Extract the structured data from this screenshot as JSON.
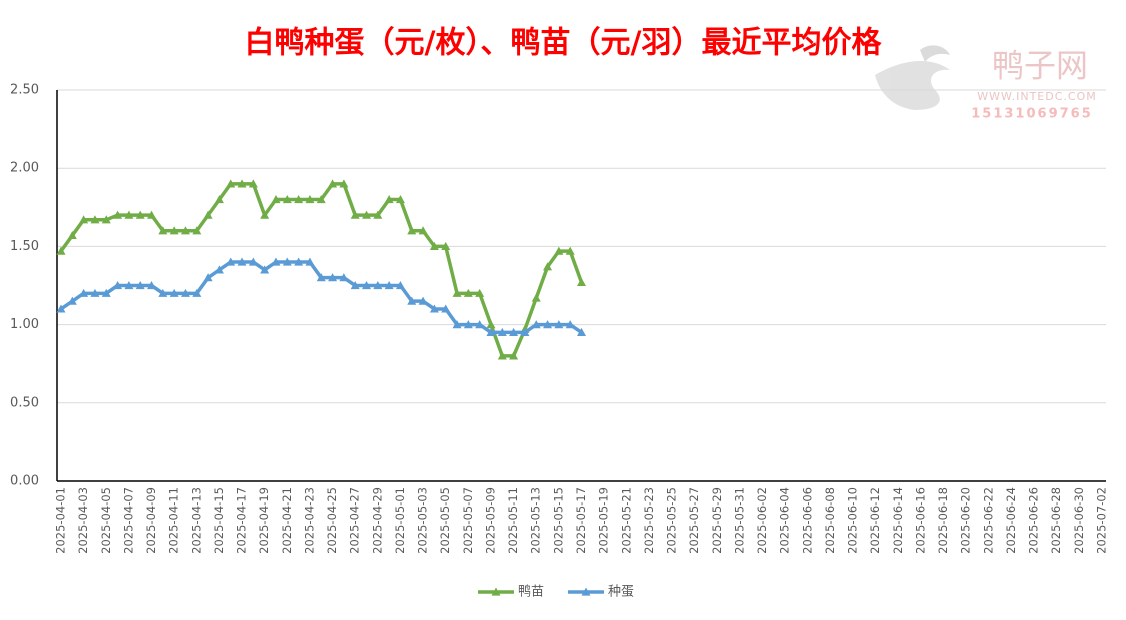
{
  "chart_data": {
    "type": "line",
    "title": "白鸭种蛋（元/枚）、鸭苗（元/羽）最近平均价格",
    "watermark": {
      "name": "鸭子网",
      "url": "WWW.INTEDC.COM",
      "phone": "15131069765"
    },
    "categories": [
      "2025-04-01",
      null,
      "2025-04-03",
      null,
      "2025-04-05",
      null,
      "2025-04-07",
      null,
      "2025-04-09",
      null,
      "2025-04-11",
      null,
      "2025-04-13",
      null,
      "2025-04-15",
      null,
      "2025-04-17",
      null,
      "2025-04-19",
      null,
      "2025-04-21",
      null,
      "2025-04-23",
      null,
      "2025-04-25",
      null,
      "2025-04-27",
      null,
      "2025-04-29",
      null,
      "2025-05-01",
      null,
      "2025-05-03",
      null,
      "2025-05-05",
      null,
      "2025-05-07",
      null,
      "2025-05-09",
      null,
      "2025-05-11",
      null,
      "2025-05-13",
      null,
      "2025-05-15",
      null,
      "2025-05-17",
      null,
      "2025-05-19",
      null,
      "2025-05-21",
      null,
      "2025-05-23",
      null,
      "2025-05-25",
      null,
      "2025-05-27",
      null,
      "2025-05-29",
      null,
      "2025-05-31",
      null,
      "2025-06-02",
      null,
      "2025-06-04",
      null,
      "2025-06-06",
      null,
      "2025-06-08",
      null,
      "2025-06-10",
      null,
      "2025-06-12",
      null,
      "2025-06-14",
      null,
      "2025-06-16",
      null,
      "2025-06-18",
      null,
      "2025-06-20",
      null,
      "2025-06-22",
      null,
      "2025-06-24",
      null,
      "2025-06-26",
      null,
      "2025-06-28",
      null,
      "2025-06-30",
      null,
      "2025-07-02"
    ],
    "series": [
      {
        "name": "鸭苗",
        "color": "#70ad47",
        "values": [
          1.47,
          1.57,
          1.67,
          1.67,
          1.67,
          1.7,
          1.7,
          1.7,
          1.7,
          1.6,
          1.6,
          1.6,
          1.6,
          1.7,
          1.8,
          1.9,
          1.9,
          1.9,
          1.7,
          1.8,
          1.8,
          1.8,
          1.8,
          1.8,
          1.9,
          1.9,
          1.7,
          1.7,
          1.7,
          1.8,
          1.8,
          1.6,
          1.6,
          1.5,
          1.5,
          1.2,
          1.2,
          1.2,
          1.0,
          0.8,
          0.8,
          0.97,
          1.17,
          1.37,
          1.47,
          1.47,
          1.27,
          null,
          null,
          null,
          null,
          null,
          null,
          null,
          null,
          null,
          null,
          null,
          null,
          null,
          null,
          null,
          null,
          null,
          null,
          null,
          null,
          null,
          null,
          null,
          null,
          null,
          null,
          null,
          null,
          null,
          null,
          null,
          null,
          null,
          null,
          null,
          null,
          null,
          null,
          null,
          null,
          null,
          null,
          null,
          null,
          null,
          null
        ]
      },
      {
        "name": "种蛋",
        "color": "#5b9bd5",
        "values": [
          1.1,
          1.15,
          1.2,
          1.2,
          1.2,
          1.25,
          1.25,
          1.25,
          1.25,
          1.2,
          1.2,
          1.2,
          1.2,
          1.3,
          1.35,
          1.4,
          1.4,
          1.4,
          1.35,
          1.4,
          1.4,
          1.4,
          1.4,
          1.3,
          1.3,
          1.3,
          1.25,
          1.25,
          1.25,
          1.25,
          1.25,
          1.15,
          1.15,
          1.1,
          1.1,
          1.0,
          1.0,
          1.0,
          0.95,
          0.95,
          0.95,
          0.95,
          1.0,
          1.0,
          1.0,
          1.0,
          0.95,
          null,
          null,
          null,
          null,
          null,
          null,
          null,
          null,
          null,
          null,
          null,
          null,
          null,
          null,
          null,
          null,
          null,
          null,
          null,
          null,
          null,
          null,
          null,
          null,
          null,
          null,
          null,
          null,
          null,
          null,
          null,
          null,
          null,
          null,
          null,
          null,
          null,
          null,
          null,
          null,
          null,
          null,
          null,
          null,
          null,
          null
        ]
      }
    ],
    "ylim": [
      0,
      2.5
    ],
    "yticks": [
      {
        "value": 0,
        "label": "0.00"
      },
      {
        "value": 0.5,
        "label": "0.50"
      },
      {
        "value": 1,
        "label": "1.00"
      },
      {
        "value": 1.5,
        "label": "1.50"
      },
      {
        "value": 2,
        "label": "2.00"
      },
      {
        "value": 2.5,
        "label": "2.50"
      }
    ],
    "grid": true,
    "legend": "bottom"
  }
}
